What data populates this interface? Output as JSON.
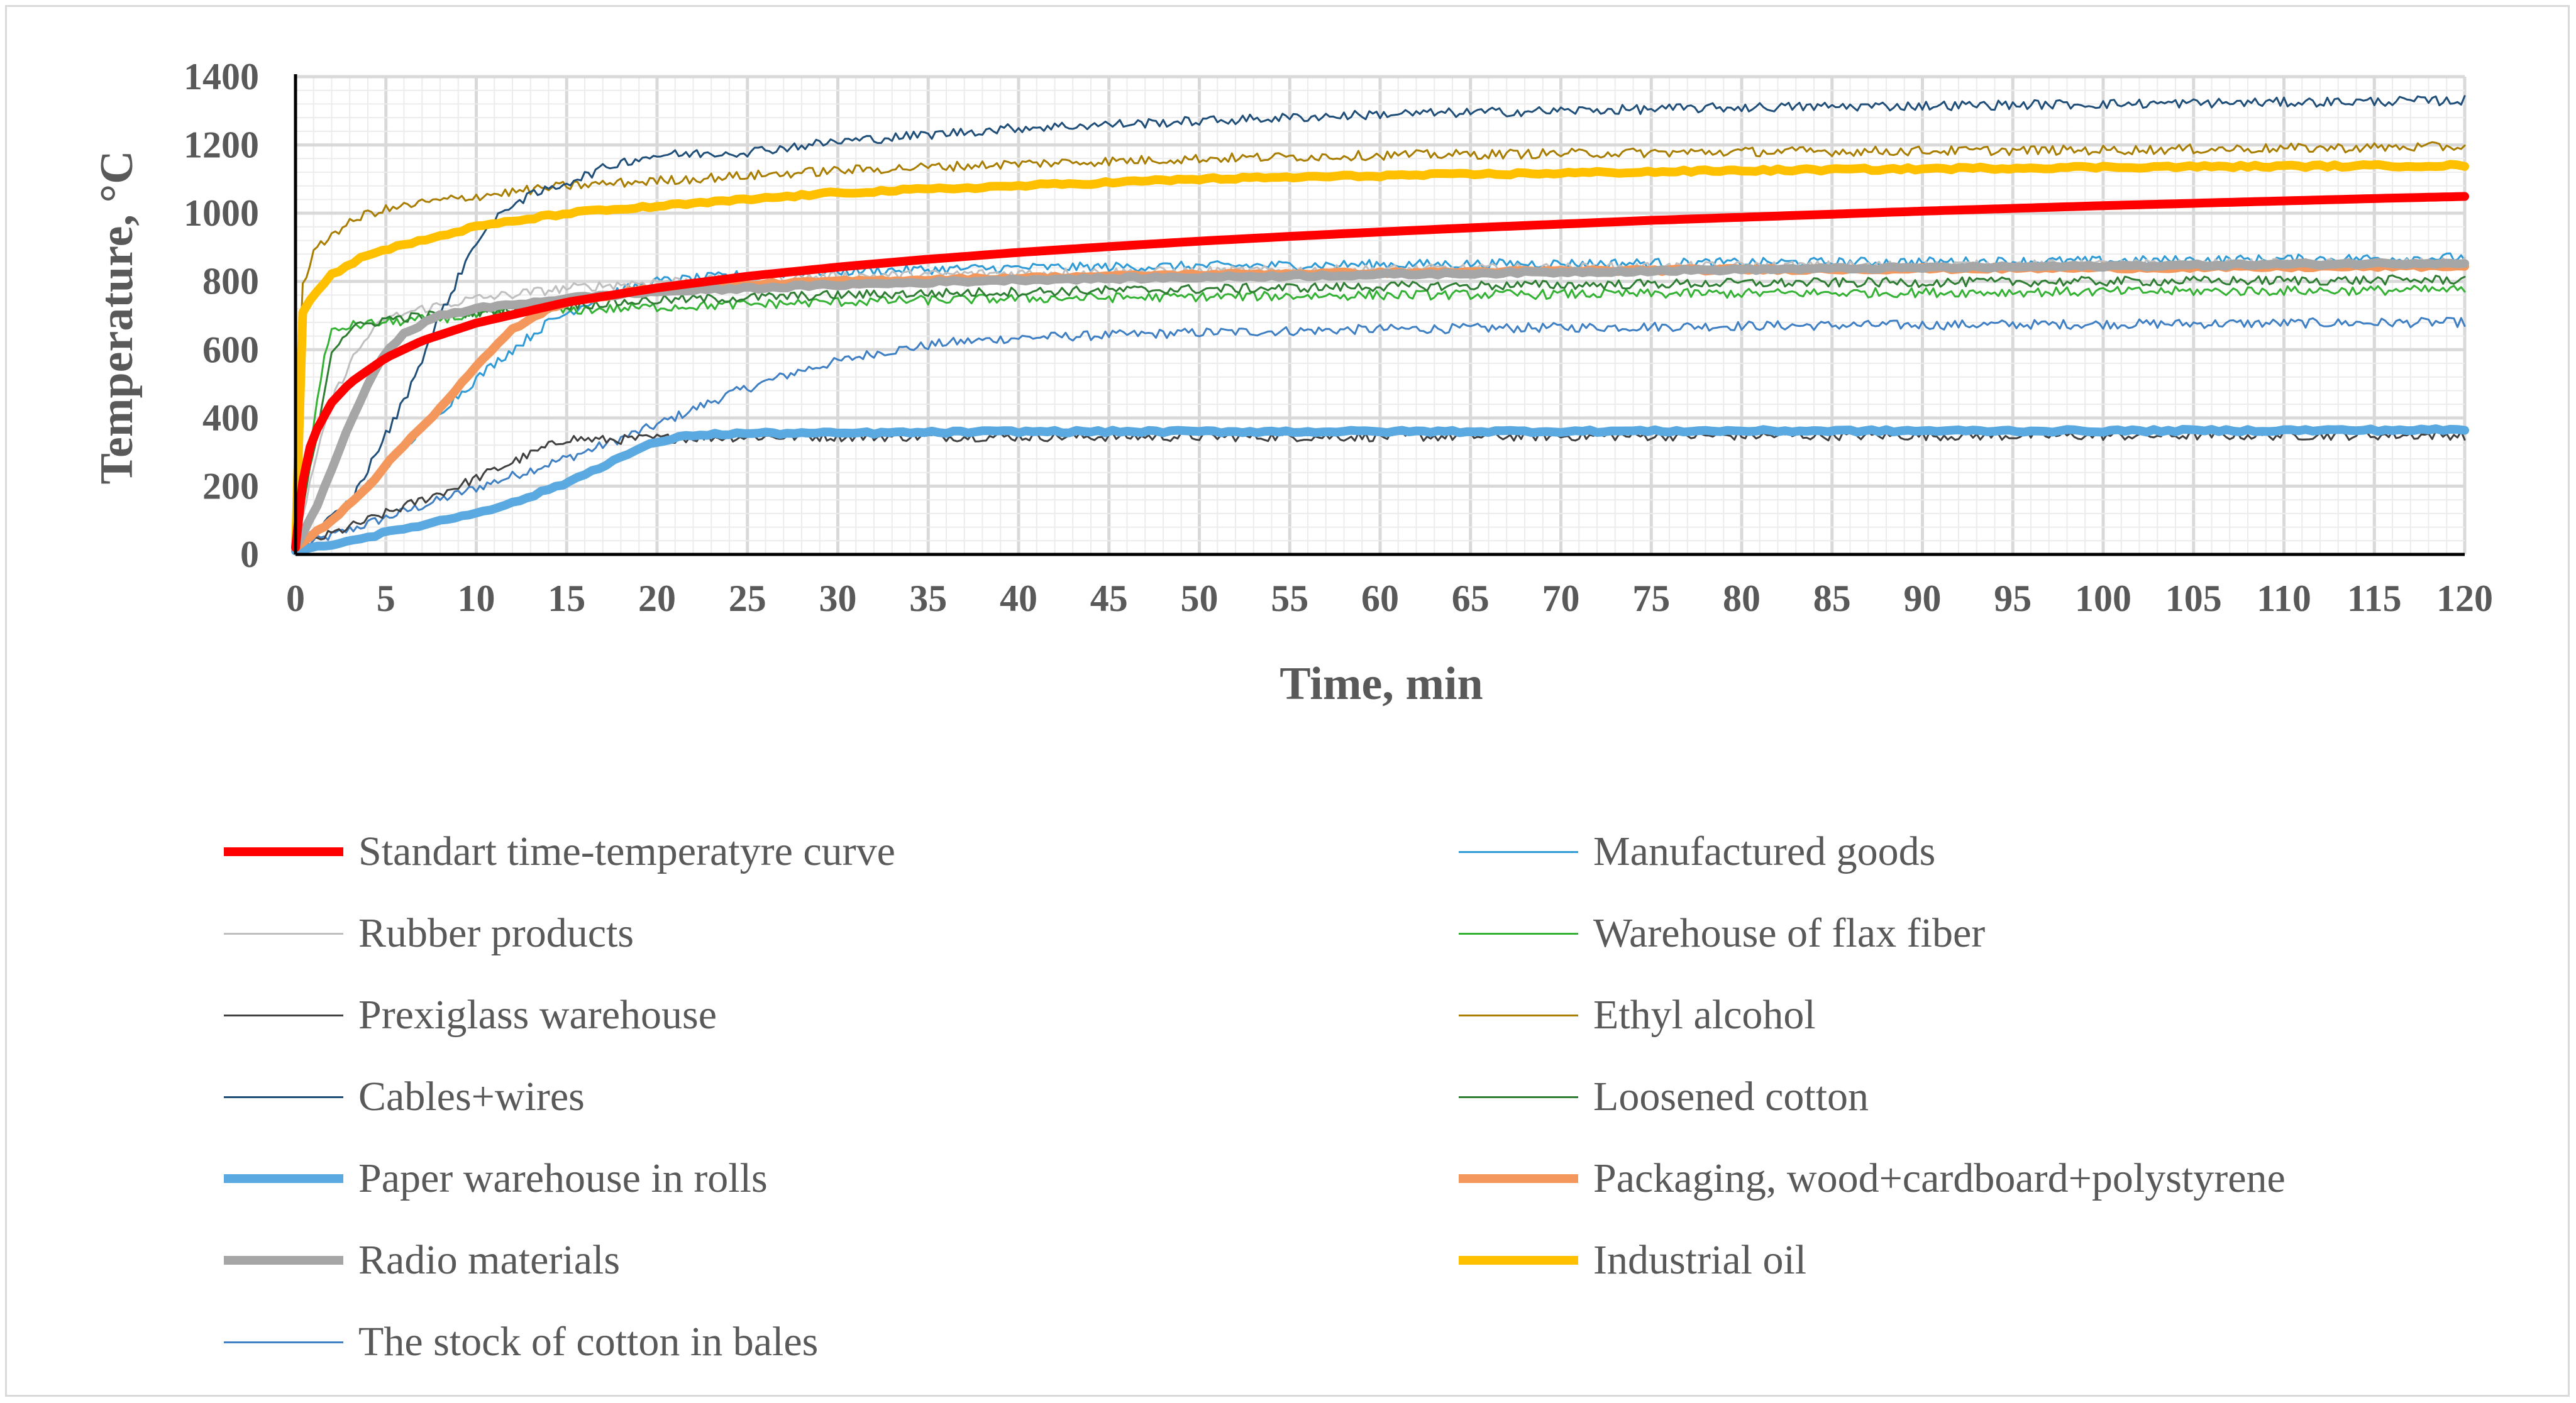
{
  "chart_data": {
    "type": "line",
    "title": "",
    "xlabel": "Time,  min",
    "ylabel": "Temperature, °C",
    "xlim": [
      0,
      120
    ],
    "ylim": [
      0,
      1400
    ],
    "x_ticks": [
      "0",
      "5",
      "10",
      "15",
      "20",
      "25",
      "30",
      "35",
      "40",
      "45",
      "50",
      "55",
      "60",
      "65",
      "70",
      "75",
      "80",
      "85",
      "90",
      "95",
      "100",
      "105",
      "110",
      "115",
      "120"
    ],
    "y_ticks": [
      "0",
      "200",
      "400",
      "600",
      "800",
      "1000",
      "1200",
      "1400"
    ],
    "grid": true,
    "legend_position": "bottom",
    "series": [
      {
        "name": "Standart time-temperatyre curve",
        "color": "#ff0000",
        "width": 14,
        "points": [
          [
            0,
            20
          ],
          [
            0.5,
            260
          ],
          [
            1,
            349
          ],
          [
            2,
            445
          ],
          [
            3,
            502
          ],
          [
            5,
            576
          ],
          [
            7,
            626
          ],
          [
            10,
            678
          ],
          [
            15,
            739
          ],
          [
            20,
            781
          ],
          [
            25,
            815
          ],
          [
            30,
            842
          ],
          [
            35,
            865
          ],
          [
            40,
            885
          ],
          [
            45,
            902
          ],
          [
            50,
            918
          ],
          [
            55,
            932
          ],
          [
            60,
            945
          ],
          [
            65,
            957
          ],
          [
            70,
            968
          ],
          [
            75,
            979
          ],
          [
            80,
            988
          ],
          [
            85,
            997
          ],
          [
            90,
            1006
          ],
          [
            95,
            1014
          ],
          [
            100,
            1022
          ],
          [
            105,
            1029
          ],
          [
            110,
            1036
          ],
          [
            115,
            1043
          ],
          [
            120,
            1049
          ]
        ]
      },
      {
        "name": "Manufactured goods",
        "color": "#2e9bd6",
        "width": 3,
        "points": [
          [
            0,
            20
          ],
          [
            2,
            100
          ],
          [
            5,
            260
          ],
          [
            8,
            420
          ],
          [
            11,
            560
          ],
          [
            14,
            680
          ],
          [
            17,
            760
          ],
          [
            20,
            800
          ],
          [
            25,
            820
          ],
          [
            30,
            830
          ],
          [
            40,
            840
          ],
          [
            50,
            845
          ],
          [
            60,
            850
          ],
          [
            80,
            855
          ],
          [
            100,
            860
          ],
          [
            120,
            870
          ]
        ]
      },
      {
        "name": "Rubber products",
        "color": "#bfbfbf",
        "width": 3,
        "points": [
          [
            0,
            20
          ],
          [
            1,
            250
          ],
          [
            2,
            450
          ],
          [
            3,
            560
          ],
          [
            4,
            640
          ],
          [
            5,
            690
          ],
          [
            7,
            720
          ],
          [
            10,
            750
          ],
          [
            15,
            780
          ],
          [
            20,
            800
          ],
          [
            30,
            815
          ],
          [
            40,
            825
          ],
          [
            60,
            835
          ],
          [
            80,
            845
          ],
          [
            100,
            850
          ],
          [
            120,
            855
          ]
        ]
      },
      {
        "name": "Warehouse of flax fiber",
        "color": "#33b233",
        "width": 3,
        "points": [
          [
            0,
            20
          ],
          [
            0.8,
            300
          ],
          [
            1.5,
            560
          ],
          [
            2,
            650
          ],
          [
            3,
            670
          ],
          [
            5,
            680
          ],
          [
            10,
            700
          ],
          [
            15,
            715
          ],
          [
            20,
            725
          ],
          [
            30,
            740
          ],
          [
            40,
            750
          ],
          [
            60,
            760
          ],
          [
            80,
            765
          ],
          [
            100,
            770
          ],
          [
            120,
            775
          ]
        ]
      },
      {
        "name": "Prexiglass warehouse",
        "color": "#404040",
        "width": 3,
        "points": [
          [
            0,
            20
          ],
          [
            3,
            80
          ],
          [
            6,
            140
          ],
          [
            9,
            200
          ],
          [
            12,
            270
          ],
          [
            15,
            340
          ],
          [
            17,
            335
          ],
          [
            20,
            340
          ],
          [
            25,
            345
          ],
          [
            40,
            345
          ],
          [
            60,
            345
          ],
          [
            80,
            348
          ],
          [
            100,
            348
          ],
          [
            120,
            350
          ]
        ]
      },
      {
        "name": "Ethyl alcohol",
        "color": "#a87d00",
        "width": 3,
        "points": [
          [
            0,
            20
          ],
          [
            0.3,
            780
          ],
          [
            1,
            880
          ],
          [
            2,
            940
          ],
          [
            4,
            1000
          ],
          [
            7,
            1030
          ],
          [
            10,
            1050
          ],
          [
            15,
            1080
          ],
          [
            20,
            1095
          ],
          [
            25,
            1110
          ],
          [
            30,
            1125
          ],
          [
            40,
            1145
          ],
          [
            50,
            1160
          ],
          [
            60,
            1170
          ],
          [
            80,
            1180
          ],
          [
            100,
            1185
          ],
          [
            120,
            1195
          ]
        ]
      },
      {
        "name": "Cables+wires",
        "color": "#1f4e79",
        "width": 3,
        "points": [
          [
            0,
            20
          ],
          [
            3,
            150
          ],
          [
            6,
            450
          ],
          [
            8,
            700
          ],
          [
            10,
            920
          ],
          [
            12,
            1030
          ],
          [
            15,
            1090
          ],
          [
            18,
            1150
          ],
          [
            20,
            1170
          ],
          [
            25,
            1180
          ],
          [
            30,
            1210
          ],
          [
            40,
            1250
          ],
          [
            50,
            1270
          ],
          [
            60,
            1290
          ],
          [
            80,
            1310
          ],
          [
            100,
            1320
          ],
          [
            120,
            1330
          ]
        ]
      },
      {
        "name": "Loosened cotton",
        "color": "#2e7d32",
        "width": 3,
        "points": [
          [
            0,
            20
          ],
          [
            1,
            300
          ],
          [
            2,
            600
          ],
          [
            3,
            660
          ],
          [
            5,
            690
          ],
          [
            10,
            710
          ],
          [
            15,
            730
          ],
          [
            20,
            745
          ],
          [
            30,
            760
          ],
          [
            40,
            770
          ],
          [
            60,
            785
          ],
          [
            80,
            795
          ],
          [
            100,
            800
          ],
          [
            120,
            805
          ]
        ]
      },
      {
        "name": "Paper warehouse in rolls",
        "color": "#5aa9e0",
        "width": 14,
        "points": [
          [
            0,
            10
          ],
          [
            3,
            40
          ],
          [
            6,
            75
          ],
          [
            9,
            110
          ],
          [
            12,
            150
          ],
          [
            15,
            210
          ],
          [
            18,
            285
          ],
          [
            20,
            330
          ],
          [
            22,
            350
          ],
          [
            25,
            355
          ],
          [
            30,
            355
          ],
          [
            40,
            360
          ],
          [
            50,
            360
          ],
          [
            60,
            360
          ],
          [
            80,
            362
          ],
          [
            100,
            362
          ],
          [
            120,
            365
          ]
        ]
      },
      {
        "name": "Packaging, wood+cardboard+polystyrene",
        "color": "#f4975c",
        "width": 14,
        "points": [
          [
            0,
            20
          ],
          [
            2,
            100
          ],
          [
            4,
            200
          ],
          [
            6,
            320
          ],
          [
            8,
            430
          ],
          [
            10,
            550
          ],
          [
            12,
            660
          ],
          [
            14,
            720
          ],
          [
            16,
            750
          ],
          [
            20,
            780
          ],
          [
            25,
            790
          ],
          [
            30,
            800
          ],
          [
            40,
            810
          ],
          [
            50,
            820
          ],
          [
            60,
            825
          ],
          [
            80,
            835
          ],
          [
            100,
            840
          ],
          [
            120,
            845
          ]
        ]
      },
      {
        "name": "Radio materials",
        "color": "#a6a6a6",
        "width": 14,
        "points": [
          [
            0,
            20
          ],
          [
            1,
            120
          ],
          [
            2,
            250
          ],
          [
            3,
            380
          ],
          [
            4,
            500
          ],
          [
            5,
            590
          ],
          [
            6,
            650
          ],
          [
            8,
            700
          ],
          [
            10,
            720
          ],
          [
            15,
            750
          ],
          [
            20,
            770
          ],
          [
            30,
            790
          ],
          [
            40,
            805
          ],
          [
            60,
            820
          ],
          [
            80,
            835
          ],
          [
            100,
            845
          ],
          [
            120,
            855
          ]
        ]
      },
      {
        "name": "Industrial oil",
        "color": "#ffc000",
        "width": 14,
        "points": [
          [
            0,
            20
          ],
          [
            0.3,
            700
          ],
          [
            1,
            760
          ],
          [
            2,
            820
          ],
          [
            4,
            880
          ],
          [
            7,
            920
          ],
          [
            10,
            960
          ],
          [
            15,
            1000
          ],
          [
            20,
            1020
          ],
          [
            25,
            1040
          ],
          [
            30,
            1060
          ],
          [
            40,
            1080
          ],
          [
            50,
            1100
          ],
          [
            60,
            1110
          ],
          [
            80,
            1125
          ],
          [
            100,
            1135
          ],
          [
            120,
            1140
          ]
        ]
      },
      {
        "name": "The stock of cotton in bales",
        "color": "#3f7fc4",
        "width": 3,
        "points": [
          [
            0,
            20
          ],
          [
            4,
            90
          ],
          [
            8,
            160
          ],
          [
            12,
            230
          ],
          [
            16,
            300
          ],
          [
            20,
            380
          ],
          [
            24,
            470
          ],
          [
            28,
            540
          ],
          [
            32,
            590
          ],
          [
            36,
            620
          ],
          [
            40,
            635
          ],
          [
            50,
            650
          ],
          [
            60,
            660
          ],
          [
            80,
            670
          ],
          [
            100,
            675
          ],
          [
            120,
            680
          ]
        ]
      }
    ]
  }
}
